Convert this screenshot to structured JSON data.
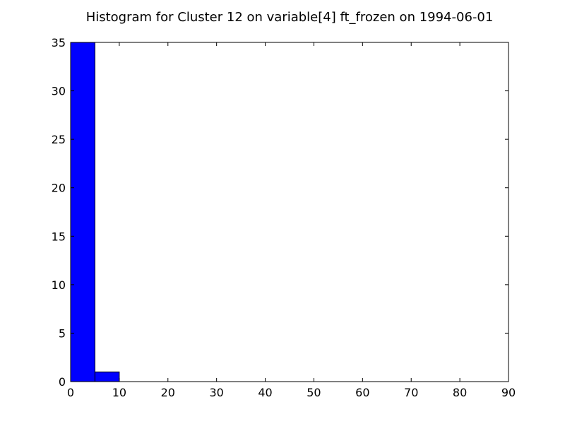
{
  "chart_data": {
    "type": "bar",
    "title": "Histogram for Cluster 12 on variable[4] ft_frozen on 1994-06-01",
    "xlabel": "",
    "ylabel": "",
    "xlim": [
      0,
      90
    ],
    "ylim": [
      0,
      35
    ],
    "x_ticks": [
      0,
      10,
      20,
      30,
      40,
      50,
      60,
      70,
      80,
      90
    ],
    "y_ticks": [
      0,
      5,
      10,
      15,
      20,
      25,
      30,
      35
    ],
    "grid": false,
    "legend": "none",
    "bins": [
      {
        "start": 0,
        "end": 5,
        "value": 35
      },
      {
        "start": 5,
        "end": 10,
        "value": 1
      }
    ],
    "bar_color": "#0000ff",
    "edge_color": "#000000"
  }
}
